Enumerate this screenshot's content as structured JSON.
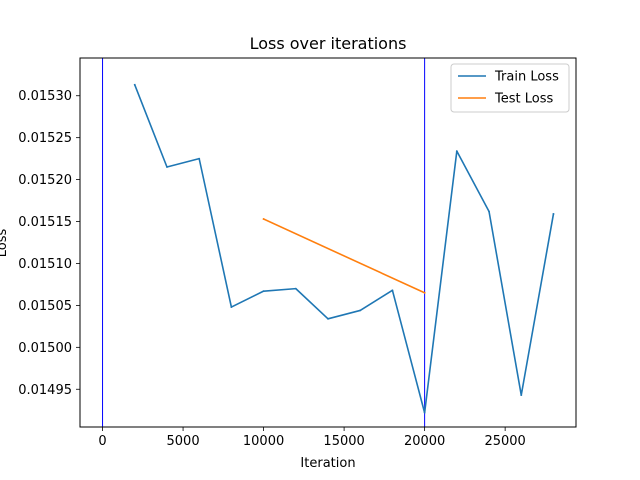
{
  "chart_data": {
    "type": "line",
    "title": "Loss over iterations",
    "xlabel": "Iteration",
    "ylabel": "Loss",
    "xlim": [
      -1400,
      29400
    ],
    "ylim": [
      0.014905,
      0.015345
    ],
    "x_ticks": [
      0,
      5000,
      10000,
      15000,
      20000,
      25000
    ],
    "x_tick_labels": [
      "0",
      "5000",
      "10000",
      "15000",
      "20000",
      "25000"
    ],
    "y_ticks": [
      0.01495,
      0.015,
      0.01505,
      0.0151,
      0.01515,
      0.0152,
      0.01525,
      0.0153
    ],
    "y_tick_labels": [
      "0.01495",
      "0.01500",
      "0.01505",
      "0.01510",
      "0.01515",
      "0.01520",
      "0.01525",
      "0.01530"
    ],
    "grid": false,
    "legend_position": "upper right",
    "series": [
      {
        "name": "Train Loss",
        "color": "#1f77b4",
        "x": [
          2000,
          4000,
          6000,
          8000,
          10000,
          12000,
          14000,
          16000,
          18000,
          20000,
          22000,
          24000,
          26000,
          28000
        ],
        "y": [
          0.015313,
          0.015215,
          0.015225,
          0.015048,
          0.015067,
          0.01507,
          0.015034,
          0.015044,
          0.015068,
          0.014922,
          0.015234,
          0.015162,
          0.014943,
          0.015159
        ]
      },
      {
        "name": "Test Loss",
        "color": "#ff7f0e",
        "x": [
          10000,
          20000
        ],
        "y": [
          0.015153,
          0.015065
        ]
      }
    ],
    "vlines": {
      "color": "#0000ff",
      "x": [
        0,
        20000
      ]
    }
  }
}
